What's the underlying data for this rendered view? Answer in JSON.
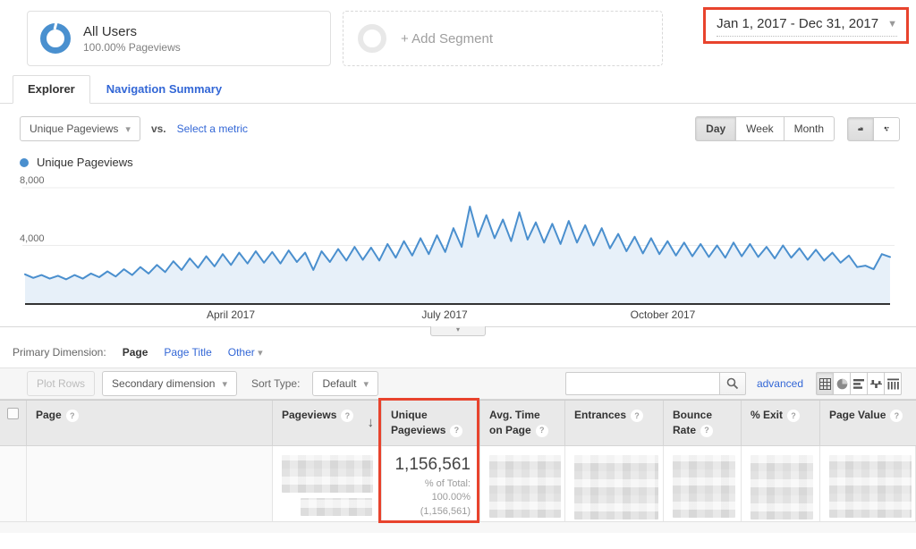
{
  "colors": {
    "accent_blue": "#4a8fce",
    "area_fill": "#e7f0f9",
    "highlight_red": "#e8432d",
    "link_blue": "#3367d6"
  },
  "segments": {
    "all_users": {
      "title": "All Users",
      "subtitle": "100.00% Pageviews"
    },
    "add_segment_label": "+ Add Segment"
  },
  "date_range": {
    "text": "Jan 1, 2017 - Dec 31, 2017"
  },
  "tabs": {
    "explorer": "Explorer",
    "navigation_summary": "Navigation Summary"
  },
  "metric_controls": {
    "metric_dropdown": "Unique Pageviews",
    "vs_label": "vs.",
    "select_metric": "Select a metric",
    "granularity": [
      "Day",
      "Week",
      "Month"
    ],
    "active_granularity": "Day"
  },
  "legend": {
    "label": "Unique Pageviews"
  },
  "chart_data": {
    "type": "area",
    "title": "Unique Pageviews",
    "x_axis": {
      "ticks": [
        "April 2017",
        "July 2017",
        "October 2017"
      ],
      "range": "Jan 1, 2017 - Dec 31, 2017"
    },
    "y_axis": {
      "ticks": [
        "8,000",
        "4,000"
      ],
      "min": 0,
      "max": 8000,
      "gridlines": [
        8000,
        4000
      ]
    },
    "series": [
      {
        "name": "Unique Pageviews",
        "note": "daily series approximated as weekly high/low pairs, Jan-Dec 2017; peak ~6,700 in July",
        "values": [
          2000,
          1750,
          1950,
          1700,
          1900,
          1650,
          1950,
          1700,
          2050,
          1800,
          2200,
          1850,
          2350,
          1950,
          2500,
          2050,
          2650,
          2150,
          2900,
          2300,
          3100,
          2450,
          3250,
          2550,
          3400,
          2650,
          3500,
          2750,
          3600,
          2800,
          3550,
          2750,
          3650,
          2850,
          3500,
          2300,
          3600,
          2850,
          3750,
          2950,
          3900,
          3000,
          3850,
          2950,
          4100,
          3150,
          4300,
          3300,
          4500,
          3400,
          4700,
          3550,
          5200,
          3900,
          6700,
          4600,
          6100,
          4500,
          5800,
          4300,
          6300,
          4400,
          5600,
          4200,
          5500,
          4100,
          5700,
          4200,
          5400,
          4000,
          5200,
          3800,
          4800,
          3600,
          4600,
          3450,
          4500,
          3400,
          4300,
          3300,
          4200,
          3250,
          4100,
          3200,
          4000,
          3150,
          4200,
          3250,
          4100,
          3200,
          3900,
          3100,
          4000,
          3150,
          3800,
          3000,
          3700,
          2950,
          3500,
          2800,
          3300,
          2500,
          2600,
          2350,
          3400,
          3200
        ]
      }
    ]
  },
  "primary_dimension": {
    "label": "Primary Dimension:",
    "selected": "Page",
    "option_page_title": "Page Title",
    "option_other": "Other"
  },
  "toolbar": {
    "plot_rows": "Plot Rows",
    "secondary_dimension": "Secondary dimension",
    "sort_type_label": "Sort Type:",
    "sort_type_value": "Default",
    "search_value": "",
    "advanced": "advanced"
  },
  "table": {
    "columns": [
      {
        "label": "Page"
      },
      {
        "label": "Pageviews",
        "sorted": "desc"
      },
      {
        "label": "Unique Pageviews",
        "highlighted": true
      },
      {
        "label": "Avg. Time on Page"
      },
      {
        "label": "Entrances"
      },
      {
        "label": "Bounce Rate"
      },
      {
        "label": "% Exit"
      },
      {
        "label": "Page Value"
      }
    ],
    "summary_row": {
      "unique_pageviews": "1,156,561",
      "percent_line1": "% of Total:",
      "percent_line2": "100.00%",
      "percent_line3": "(1,156,561)"
    }
  }
}
